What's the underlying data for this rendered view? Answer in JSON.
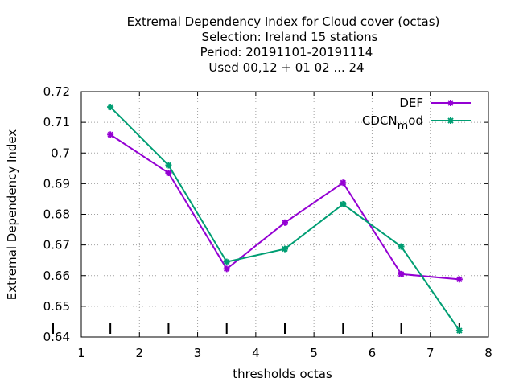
{
  "chart_data": {
    "type": "line",
    "title_lines": [
      "Extremal Dependency Index  for Cloud cover (octas)",
      "Selection: Ireland     15 stations",
      "Period: 20191101-20191114",
      "Used  00,12  + 01 02 ... 24"
    ],
    "xlabel": "thresholds octas",
    "ylabel": "Extremal Dependency Index",
    "xlim": [
      1,
      8
    ],
    "ylim": [
      0.64,
      0.72
    ],
    "xticks": [
      1,
      2,
      3,
      4,
      5,
      6,
      7,
      8
    ],
    "xtick_labels": [
      "1",
      "2",
      "3",
      "4",
      "5",
      "6",
      "7",
      "8"
    ],
    "yticks": [
      0.64,
      0.65,
      0.66,
      0.67,
      0.68,
      0.69,
      0.7,
      0.71,
      0.72
    ],
    "ytick_labels": [
      "0.64",
      "0.65",
      "0.66",
      "0.67",
      "0.68",
      "0.69",
      "0.7",
      "0.71",
      "0.72"
    ],
    "grid": true,
    "legend_position": "top-right",
    "x": [
      1.5,
      2.5,
      3.5,
      4.5,
      5.5,
      6.5,
      7.5
    ],
    "series": [
      {
        "name": "DEF",
        "legend_main": "DEF",
        "legend_sub": "",
        "legend_after": "",
        "color": "#9400d3",
        "values": [
          0.706,
          0.6935,
          0.6622,
          0.6773,
          0.6903,
          0.6605,
          0.6588
        ]
      },
      {
        "name": "CDCN_mod",
        "legend_main": "CDCN",
        "legend_sub": "m",
        "legend_after": "od",
        "color": "#009e73",
        "values": [
          0.715,
          0.696,
          0.6645,
          0.6687,
          0.6833,
          0.6695,
          0.6421
        ]
      }
    ],
    "bottom_ticks_x": [
      1.5,
      2.5,
      3.5,
      4.5,
      5.5,
      6.5,
      7.5
    ]
  }
}
